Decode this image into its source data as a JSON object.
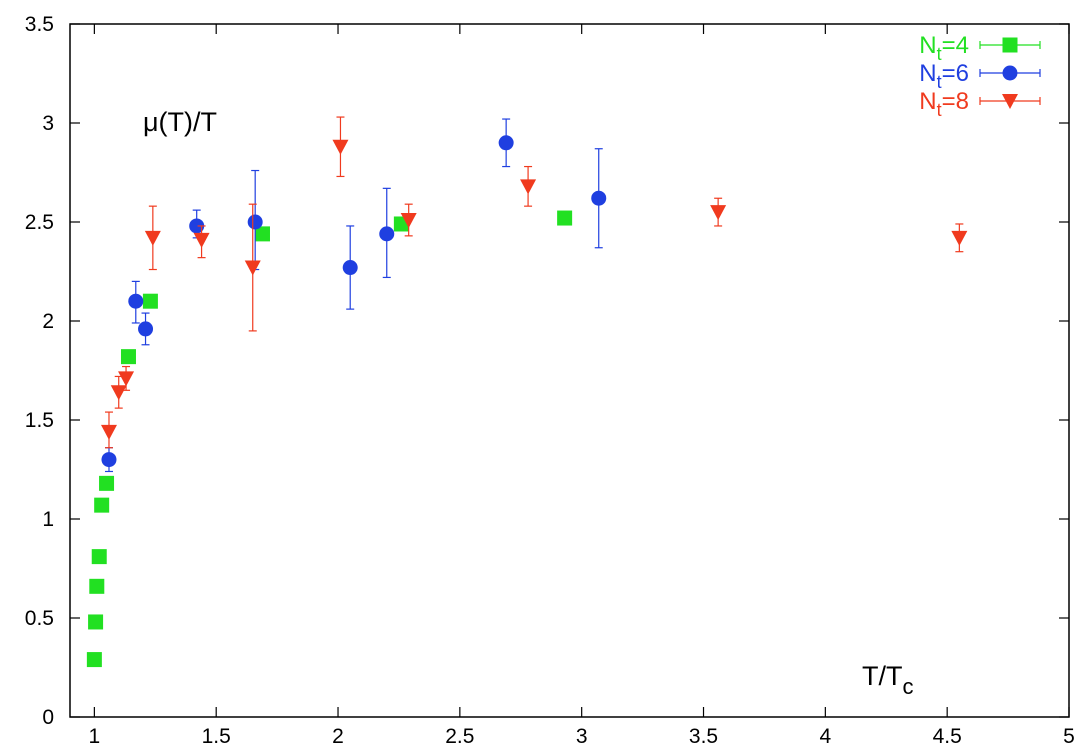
{
  "chart_data": {
    "type": "scatter",
    "title": "",
    "ylabel": "μ(T)/T",
    "xlabel_main": "T/T",
    "xlabel_sub": "c",
    "xlim": [
      0.9,
      5
    ],
    "ylim": [
      0,
      3.5
    ],
    "x_ticks": [
      "1",
      "1.5",
      "2",
      "2.5",
      "3",
      "3.5",
      "4",
      "4.5",
      "5"
    ],
    "y_ticks": [
      "0",
      "0.5",
      "1",
      "1.5",
      "2",
      "2.5",
      "3",
      "3.5"
    ],
    "grid": false,
    "legend_position": "top-right",
    "series": [
      {
        "name_main": "N",
        "name_sub": "t",
        "name_tail": "=4",
        "color": "#22e022",
        "marker": "square",
        "points": [
          {
            "x": 1.0,
            "y": 0.29
          },
          {
            "x": 1.005,
            "y": 0.48
          },
          {
            "x": 1.01,
            "y": 0.66
          },
          {
            "x": 1.02,
            "y": 0.81
          },
          {
            "x": 1.03,
            "y": 1.07
          },
          {
            "x": 1.05,
            "y": 1.18
          },
          {
            "x": 1.14,
            "y": 1.82
          },
          {
            "x": 1.23,
            "y": 2.1
          },
          {
            "x": 1.69,
            "y": 2.44
          },
          {
            "x": 2.26,
            "y": 2.49
          },
          {
            "x": 2.93,
            "y": 2.52
          }
        ]
      },
      {
        "name_main": "N",
        "name_sub": "t",
        "name_tail": "=6",
        "color": "#1f3fe0",
        "marker": "circle",
        "points": [
          {
            "x": 1.06,
            "y": 1.3,
            "yerr_low": 0.06,
            "yerr_high": 0.06
          },
          {
            "x": 1.17,
            "y": 2.1,
            "yerr_low": 0.11,
            "yerr_high": 0.1
          },
          {
            "x": 1.21,
            "y": 1.96,
            "yerr_low": 0.08,
            "yerr_high": 0.08
          },
          {
            "x": 1.42,
            "y": 2.48,
            "yerr_low": 0.06,
            "yerr_high": 0.08
          },
          {
            "x": 1.66,
            "y": 2.5,
            "yerr_low": 0.24,
            "yerr_high": 0.26
          },
          {
            "x": 2.05,
            "y": 2.27,
            "yerr_low": 0.21,
            "yerr_high": 0.21
          },
          {
            "x": 2.2,
            "y": 2.44,
            "yerr_low": 0.22,
            "yerr_high": 0.23
          },
          {
            "x": 2.69,
            "y": 2.9,
            "yerr_low": 0.12,
            "yerr_high": 0.12
          },
          {
            "x": 3.07,
            "y": 2.62,
            "yerr_low": 0.25,
            "yerr_high": 0.25
          }
        ]
      },
      {
        "name_main": "N",
        "name_sub": "t",
        "name_tail": "=8",
        "color": "#f03a1e",
        "marker": "triangle-down",
        "points": [
          {
            "x": 1.06,
            "y": 1.44,
            "yerr_low": 0.08,
            "yerr_high": 0.1
          },
          {
            "x": 1.1,
            "y": 1.64,
            "yerr_low": 0.08,
            "yerr_high": 0.08
          },
          {
            "x": 1.13,
            "y": 1.71,
            "yerr_low": 0.06,
            "yerr_high": 0.06
          },
          {
            "x": 1.24,
            "y": 2.42,
            "yerr_low": 0.16,
            "yerr_high": 0.16
          },
          {
            "x": 1.44,
            "y": 2.41,
            "yerr_low": 0.09,
            "yerr_high": 0.07
          },
          {
            "x": 1.65,
            "y": 2.27,
            "yerr_low": 0.32,
            "yerr_high": 0.32
          },
          {
            "x": 2.01,
            "y": 2.88,
            "yerr_low": 0.15,
            "yerr_high": 0.15
          },
          {
            "x": 2.29,
            "y": 2.51,
            "yerr_low": 0.08,
            "yerr_high": 0.08
          },
          {
            "x": 2.78,
            "y": 2.68,
            "yerr_low": 0.1,
            "yerr_high": 0.1
          },
          {
            "x": 3.56,
            "y": 2.55,
            "yerr_low": 0.07,
            "yerr_high": 0.07
          },
          {
            "x": 4.55,
            "y": 2.42,
            "yerr_low": 0.07,
            "yerr_high": 0.07
          }
        ]
      }
    ]
  }
}
